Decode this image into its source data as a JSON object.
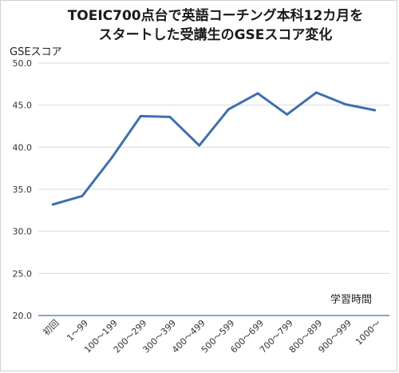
{
  "chart_data": {
    "type": "line",
    "title_lines": [
      "TOEIC700点台で英語コーチング本科12カ月を",
      "スタートした受講生のGSEスコア変化"
    ],
    "ylabel": "GSEスコア",
    "xlabel": "学習時間",
    "ylim": [
      20,
      50
    ],
    "yticks": [
      "20.0",
      "25.0",
      "30.0",
      "35.0",
      "40.0",
      "45.0",
      "50.0"
    ],
    "categories": [
      "初回",
      "1～99",
      "100～199",
      "200～299",
      "300～399",
      "400～499",
      "500～599",
      "600～699",
      "700～799",
      "800～899",
      "900～999",
      "1000～"
    ],
    "series": [
      {
        "values": [
          33.2,
          34.2,
          38.7,
          43.7,
          43.6,
          40.2,
          44.5,
          46.4,
          43.9,
          46.5,
          45.1,
          44.4
        ]
      }
    ],
    "grid": true,
    "line_color": "#3f6fb0"
  }
}
